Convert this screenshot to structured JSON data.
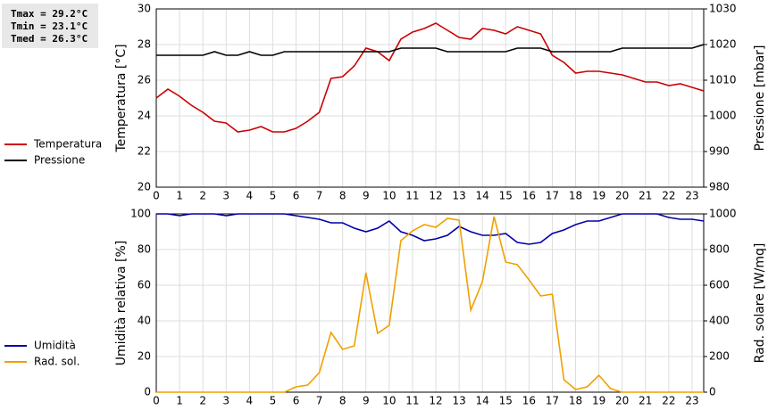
{
  "chart_data": [
    {
      "type": "line",
      "annotations": [
        "Tmax = 29.2°C",
        "Tmin = 23.1°C",
        "Tmed = 26.3°C"
      ],
      "ylabel": "Temperatura [°C]",
      "y2label": "Pressione [mbar]",
      "xlim": [
        0,
        23.5
      ],
      "xticks": [
        0,
        1,
        2,
        3,
        4,
        5,
        6,
        7,
        8,
        9,
        10,
        11,
        12,
        13,
        14,
        15,
        16,
        17,
        18,
        19,
        20,
        21,
        22,
        23
      ],
      "ylim": [
        20,
        30
      ],
      "yticks": [
        20,
        22,
        24,
        26,
        28,
        30
      ],
      "y2lim": [
        980,
        1030
      ],
      "y2ticks": [
        980,
        990,
        1000,
        1010,
        1020,
        1030
      ],
      "grid": true,
      "x": [
        0,
        0.5,
        1,
        1.5,
        2,
        2.5,
        3,
        3.5,
        4,
        4.5,
        5,
        5.5,
        6,
        6.5,
        7,
        7.5,
        8,
        8.5,
        9,
        9.5,
        10,
        10.5,
        11,
        11.5,
        12,
        12.5,
        13,
        13.5,
        14,
        14.5,
        15,
        15.5,
        16,
        16.5,
        17,
        17.5,
        18,
        18.5,
        19,
        19.5,
        20,
        20.5,
        21,
        21.5,
        22,
        22.5,
        23,
        23.5
      ],
      "series": [
        {
          "name": "Temperatura",
          "color": "#cc0000",
          "axis": "y",
          "values": [
            25.0,
            25.5,
            25.1,
            24.6,
            24.2,
            23.7,
            23.6,
            23.1,
            23.2,
            23.4,
            23.1,
            23.1,
            23.3,
            23.7,
            24.2,
            26.1,
            26.2,
            26.8,
            27.8,
            27.6,
            27.1,
            28.3,
            28.7,
            28.9,
            29.2,
            28.8,
            28.4,
            28.3,
            28.9,
            28.8,
            28.6,
            29.0,
            28.8,
            28.6,
            27.4,
            27.0,
            26.4,
            26.5,
            26.5,
            26.4,
            26.3,
            26.1,
            25.9,
            25.9,
            25.7,
            25.8,
            25.6,
            25.4
          ]
        },
        {
          "name": "Pressione",
          "color": "#000000",
          "axis": "y2",
          "values": [
            1017,
            1017,
            1017,
            1017,
            1017,
            1018,
            1017,
            1017,
            1018,
            1017,
            1017,
            1018,
            1018,
            1018,
            1018,
            1018,
            1018,
            1018,
            1018,
            1018,
            1018,
            1019,
            1019,
            1019,
            1019,
            1018,
            1018,
            1018,
            1018,
            1018,
            1018,
            1019,
            1019,
            1019,
            1018,
            1018,
            1018,
            1018,
            1018,
            1018,
            1019,
            1019,
            1019,
            1019,
            1019,
            1019,
            1019,
            1020
          ]
        }
      ]
    },
    {
      "type": "line",
      "ylabel": "Umidità relativa [%]",
      "y2label": "Rad. solare [W/mq]",
      "xlim": [
        0,
        23.5
      ],
      "xticks": [
        0,
        1,
        2,
        3,
        4,
        5,
        6,
        7,
        8,
        9,
        10,
        11,
        12,
        13,
        14,
        15,
        16,
        17,
        18,
        19,
        20,
        21,
        22,
        23
      ],
      "ylim": [
        0,
        100
      ],
      "yticks": [
        0,
        20,
        40,
        60,
        80,
        100
      ],
      "y2lim": [
        0,
        1000
      ],
      "y2ticks": [
        0,
        200,
        400,
        600,
        800,
        1000
      ],
      "grid": true,
      "x": [
        0,
        0.5,
        1,
        1.5,
        2,
        2.5,
        3,
        3.5,
        4,
        4.5,
        5,
        5.5,
        6,
        6.5,
        7,
        7.5,
        8,
        8.5,
        9,
        9.5,
        10,
        10.5,
        11,
        11.5,
        12,
        12.5,
        13,
        13.5,
        14,
        14.5,
        15,
        15.5,
        16,
        16.5,
        17,
        17.5,
        18,
        18.5,
        19,
        19.5,
        20,
        20.5,
        21,
        21.5,
        22,
        22.5,
        23,
        23.5
      ],
      "series": [
        {
          "name": "Umidità",
          "color": "#0000aa",
          "axis": "y",
          "values": [
            100,
            100,
            99,
            100,
            100,
            100,
            99,
            100,
            100,
            100,
            100,
            100,
            99,
            98,
            97,
            95,
            95,
            92,
            90,
            92,
            96,
            90,
            88,
            85,
            86,
            88,
            93,
            90,
            88,
            88,
            89,
            84,
            83,
            84,
            89,
            91,
            94,
            96,
            96,
            98,
            100,
            100,
            100,
            100,
            98,
            97,
            97,
            96
          ]
        },
        {
          "name": "Rad. sol.",
          "color": "#f0a000",
          "axis": "y2",
          "values": [
            0,
            0,
            0,
            0,
            0,
            0,
            0,
            0,
            0,
            0,
            0,
            0,
            30,
            40,
            110,
            335,
            240,
            260,
            670,
            330,
            375,
            850,
            905,
            940,
            925,
            975,
            965,
            460,
            620,
            985,
            730,
            715,
            630,
            540,
            550,
            70,
            15,
            30,
            95,
            20,
            0,
            0,
            0,
            0,
            0,
            0,
            0,
            0
          ]
        }
      ]
    }
  ]
}
